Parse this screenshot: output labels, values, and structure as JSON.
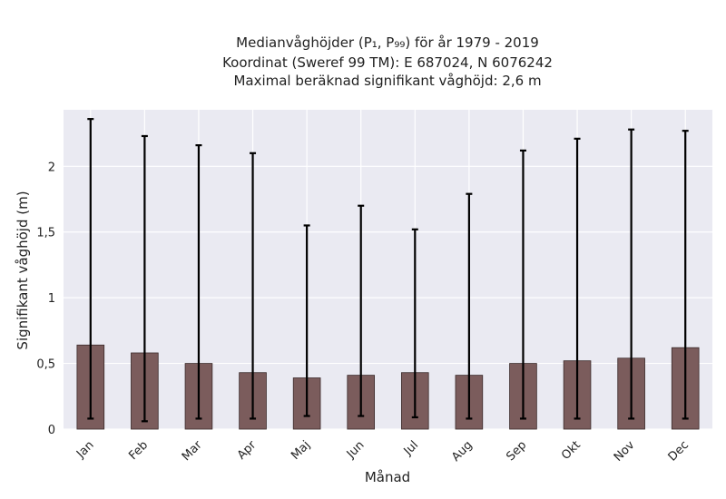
{
  "chart_data": {
    "type": "bar",
    "title_lines": [
      "Medianvåghöjder (P₁, P₉₉) för år 1979 - 2019",
      "Koordinat (Sweref 99 TM): E 687024, N 6076242",
      "Maximal beräknad signifikant våghöjd: 2,6 m"
    ],
    "xlabel": "Månad",
    "ylabel": "Signifikant våghöjd (m)",
    "categories": [
      "Jan",
      "Feb",
      "Mar",
      "Apr",
      "Maj",
      "Jun",
      "Jul",
      "Aug",
      "Sep",
      "Okt",
      "Nov",
      "Dec"
    ],
    "series": [
      {
        "values": [
          0.64,
          0.58,
          0.5,
          0.43,
          0.39,
          0.41,
          0.43,
          0.41,
          0.5,
          0.52,
          0.54,
          0.62
        ],
        "p1": [
          0.08,
          0.06,
          0.08,
          0.08,
          0.1,
          0.1,
          0.09,
          0.08,
          0.08,
          0.08,
          0.08,
          0.08
        ],
        "p99": [
          2.36,
          2.23,
          2.16,
          2.1,
          1.55,
          1.7,
          1.52,
          1.79,
          2.12,
          2.21,
          2.28,
          2.27
        ]
      }
    ],
    "ylim": [
      0,
      2.43
    ],
    "yticks": [
      0,
      0.5,
      1,
      1.5,
      2
    ],
    "ytick_labels": [
      "0",
      "0,5",
      "1",
      "1,5",
      "2"
    ],
    "grid": true,
    "colors": {
      "plot_background": "#eaeaf2",
      "grid": "#ffffff",
      "bar": "#7b5c5c",
      "bar_edge": "#3a2a2a",
      "errorbar": "#000000"
    }
  }
}
